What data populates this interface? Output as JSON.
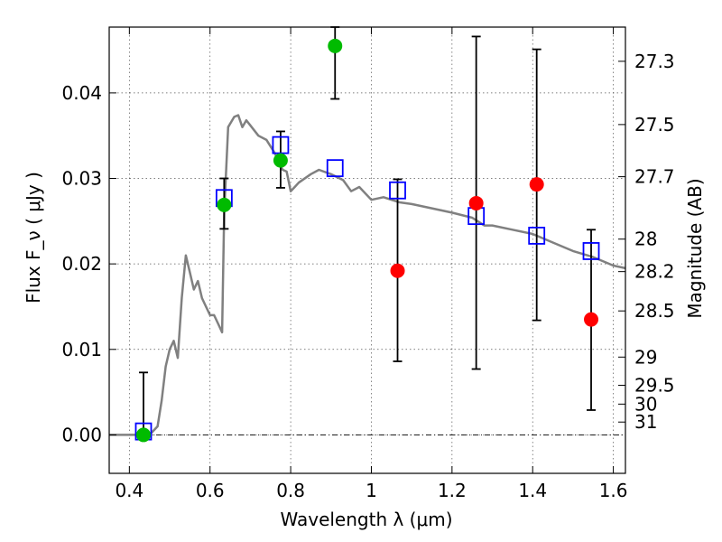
{
  "chart_data": {
    "type": "scatter",
    "xlabel": "Wavelength  λ (μm)",
    "ylabel": "Flux  F_ν  ( μJy )",
    "ylabel_right": "Magnitude (AB)",
    "xlim": [
      0.35,
      1.63
    ],
    "ylim": [
      -0.0045,
      0.0477
    ],
    "grid": true,
    "x_ticks": [
      "0.4",
      "0.6",
      "0.8",
      "1",
      "1.2",
      "1.4",
      "1.6"
    ],
    "x_tick_values": [
      0.4,
      0.6,
      0.8,
      1.0,
      1.2,
      1.4,
      1.6
    ],
    "y_ticks": [
      "0.00",
      "0.01",
      "0.02",
      "0.03",
      "0.04"
    ],
    "y_tick_values": [
      0.0,
      0.01,
      0.02,
      0.03,
      0.04
    ],
    "mag_ticks": [
      {
        "label": "27.3",
        "value": 0.0437
      },
      {
        "label": "27.5",
        "value": 0.0363
      },
      {
        "label": "27.7",
        "value": 0.0302
      },
      {
        "label": "28",
        "value": 0.0229
      },
      {
        "label": "28.2",
        "value": 0.0191
      },
      {
        "label": "28.5",
        "value": 0.0145
      },
      {
        "label": "29",
        "value": 0.0091
      },
      {
        "label": "29.5",
        "value": 0.0058
      },
      {
        "label": "30",
        "value": 0.0036
      },
      {
        "label": "31",
        "value": 0.0015
      }
    ],
    "series": [
      {
        "type": "line",
        "color": "#808080",
        "x": [
          0.35,
          0.45,
          0.47,
          0.48,
          0.49,
          0.5,
          0.51,
          0.52,
          0.53,
          0.54,
          0.55,
          0.56,
          0.57,
          0.58,
          0.6,
          0.61,
          0.62,
          0.63,
          0.635,
          0.645,
          0.66,
          0.67,
          0.68,
          0.69,
          0.7,
          0.72,
          0.74,
          0.76,
          0.78,
          0.79,
          0.8,
          0.81,
          0.82,
          0.85,
          0.87,
          0.9,
          0.93,
          0.95,
          0.97,
          1.0,
          1.03,
          1.07,
          1.1,
          1.15,
          1.2,
          1.25,
          1.28,
          1.3,
          1.35,
          1.4,
          1.45,
          1.5,
          1.55,
          1.6,
          1.63
        ],
        "y": [
          0.0,
          0.0,
          0.001,
          0.004,
          0.008,
          0.01,
          0.011,
          0.009,
          0.016,
          0.021,
          0.019,
          0.017,
          0.018,
          0.016,
          0.014,
          0.014,
          0.013,
          0.012,
          0.026,
          0.036,
          0.0372,
          0.0374,
          0.036,
          0.0368,
          0.0362,
          0.035,
          0.0345,
          0.033,
          0.031,
          0.0308,
          0.0285,
          0.029,
          0.0295,
          0.0305,
          0.031,
          0.0305,
          0.0298,
          0.0285,
          0.029,
          0.0275,
          0.0278,
          0.0272,
          0.027,
          0.0265,
          0.026,
          0.0254,
          0.0245,
          0.0245,
          0.024,
          0.0235,
          0.0225,
          0.0215,
          0.0208,
          0.0198,
          0.0195
        ]
      },
      {
        "type": "squares",
        "color": "#0000ff",
        "x": [
          0.435,
          0.635,
          0.775,
          0.91,
          1.065,
          1.26,
          1.41,
          1.545
        ],
        "y": [
          0.0004,
          0.0277,
          0.0339,
          0.0312,
          0.0286,
          0.0256,
          0.0233,
          0.0215
        ]
      },
      {
        "type": "markers",
        "color": "#00bb00",
        "x": [
          0.435,
          0.635,
          0.775,
          0.91
        ],
        "y": [
          0.0,
          0.0269,
          0.0321,
          0.0455
        ]
      },
      {
        "type": "markers",
        "color": "#ff0000",
        "x": [
          1.065,
          1.26,
          1.41,
          1.545
        ],
        "y": [
          0.0192,
          0.0271,
          0.0293,
          0.0135
        ]
      }
    ],
    "errorbars": [
      {
        "x": 0.435,
        "low": -0.0001,
        "high": 0.0073
      },
      {
        "x": 0.635,
        "low": 0.0241,
        "high": 0.03
      },
      {
        "x": 0.775,
        "low": 0.0289,
        "high": 0.0355
      },
      {
        "x": 0.91,
        "low": 0.0393,
        "high": 0.0477
      },
      {
        "x": 1.065,
        "low": 0.0086,
        "high": 0.0299
      },
      {
        "x": 1.26,
        "low": 0.0077,
        "high": 0.0466
      },
      {
        "x": 1.41,
        "low": 0.0134,
        "high": 0.0451
      },
      {
        "x": 1.545,
        "low": 0.0029,
        "high": 0.024
      }
    ]
  }
}
